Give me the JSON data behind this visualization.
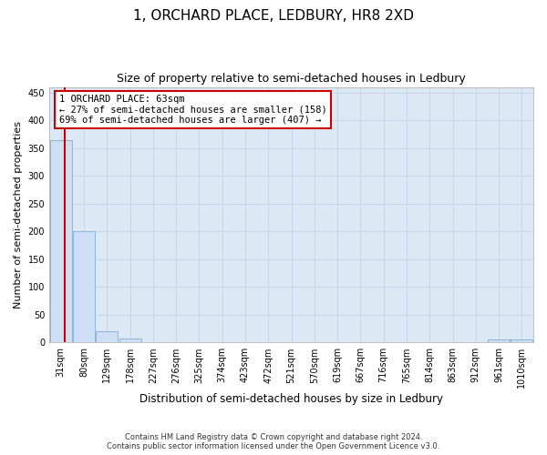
{
  "title": "1, ORCHARD PLACE, LEDBURY, HR8 2XD",
  "subtitle": "Size of property relative to semi-detached houses in Ledbury",
  "xlabel": "Distribution of semi-detached houses by size in Ledbury",
  "ylabel": "Number of semi-detached properties",
  "footer_line1": "Contains HM Land Registry data © Crown copyright and database right 2024.",
  "footer_line2": "Contains public sector information licensed under the Open Government Licence v3.0.",
  "bin_labels": [
    "31sqm",
    "80sqm",
    "129sqm",
    "178sqm",
    "227sqm",
    "276sqm",
    "325sqm",
    "374sqm",
    "423sqm",
    "472sqm",
    "521sqm",
    "570sqm",
    "619sqm",
    "667sqm",
    "716sqm",
    "765sqm",
    "814sqm",
    "863sqm",
    "912sqm",
    "961sqm",
    "1010sqm"
  ],
  "bar_values": [
    365,
    200,
    20,
    7,
    0,
    0,
    0,
    0,
    0,
    0,
    0,
    0,
    0,
    0,
    0,
    0,
    0,
    0,
    0,
    5,
    5
  ],
  "bar_color": "#ccdff5",
  "bar_edge_color": "#8ab4d9",
  "property_line_color": "#cc0000",
  "annotation_text_line1": "1 ORCHARD PLACE: 63sqm",
  "annotation_text_line2": "← 27% of semi-detached houses are smaller (158)",
  "annotation_text_line3": "69% of semi-detached houses are larger (407) →",
  "annotation_box_color": "#ffffff",
  "annotation_box_edge_color": "#cc0000",
  "ylim": [
    0,
    460
  ],
  "yticks": [
    0,
    50,
    100,
    150,
    200,
    250,
    300,
    350,
    400,
    450
  ],
  "grid_color": "#c8d4e8",
  "background_color": "#dde8f5",
  "title_fontsize": 11,
  "subtitle_fontsize": 9,
  "xlabel_fontsize": 8.5,
  "ylabel_fontsize": 8,
  "tick_fontsize": 7,
  "annotation_fontsize": 7.5,
  "footer_fontsize": 6
}
